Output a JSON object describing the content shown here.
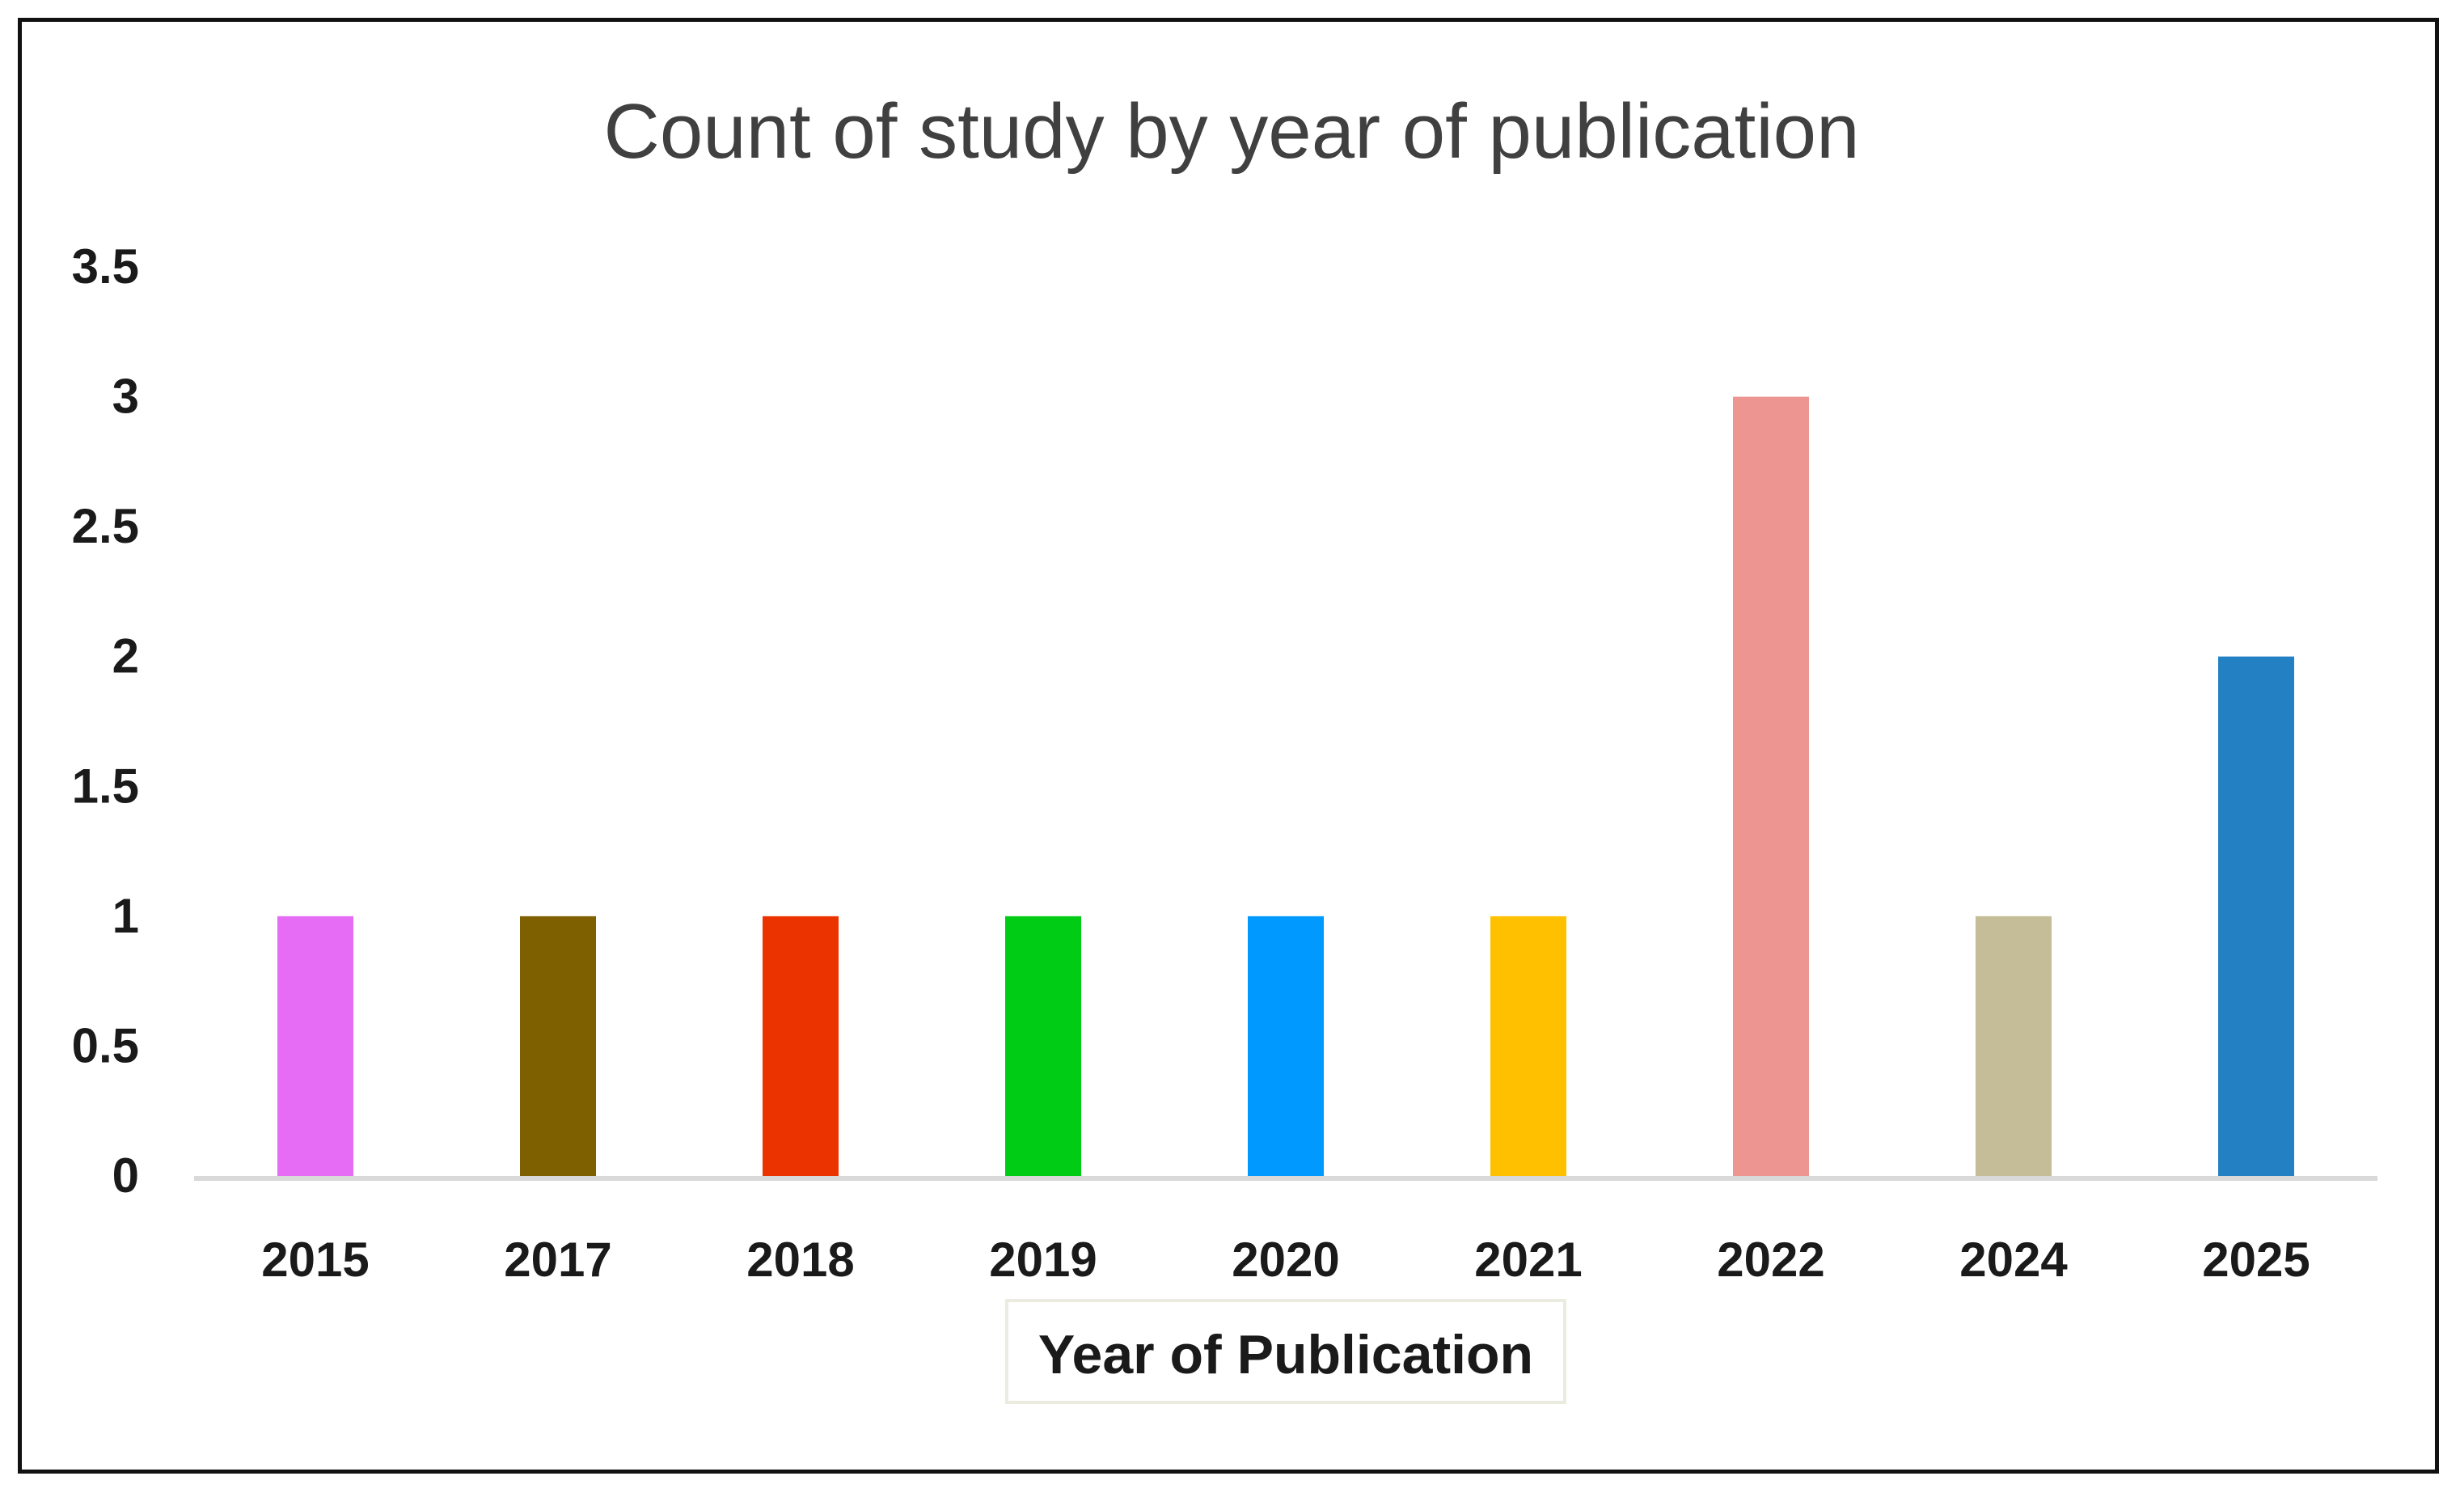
{
  "chart_data": {
    "type": "bar",
    "title": "Count of study by year of publication",
    "xlabel": "Year of Publication",
    "ylabel": "",
    "categories": [
      "2015",
      "2017",
      "2018",
      "2019",
      "2020",
      "2021",
      "2022",
      "2024",
      "2025"
    ],
    "values": [
      1,
      1,
      1,
      1,
      1,
      1,
      3,
      1,
      2
    ],
    "colors": [
      "#E66BF5",
      "#7F6000",
      "#EB3300",
      "#00CC16",
      "#0099FF",
      "#FFC000",
      "#ED9591",
      "#C4BD97",
      "#2381C3"
    ],
    "ylim": [
      0,
      3.5
    ],
    "yticks": [
      "0",
      "0.5",
      "1",
      "1.5",
      "2",
      "2.5",
      "3",
      "3.5"
    ],
    "grid": false,
    "legend": "none"
  }
}
